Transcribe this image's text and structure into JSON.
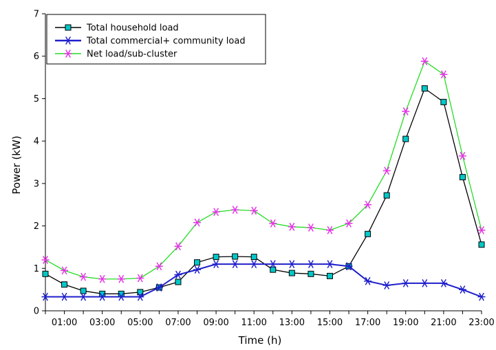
{
  "chart_data": {
    "type": "line",
    "xlabel": "Time (h)",
    "ylabel": "Power (kW)",
    "ylim": [
      0,
      7
    ],
    "yticks": [
      "0",
      "1",
      "2",
      "3",
      "4",
      "5",
      "6",
      "7"
    ],
    "xlim": [
      0,
      23
    ],
    "x_tick_labels": [
      "01:00",
      "03:00",
      "05:00",
      "07:00",
      "09:00",
      "11:00",
      "13:00",
      "15:00",
      "17:00",
      "19:00",
      "21:00",
      "23:00"
    ],
    "x": [
      0,
      1,
      2,
      3,
      4,
      5,
      6,
      7,
      8,
      9,
      10,
      11,
      12,
      13,
      14,
      15,
      16,
      17,
      18,
      19,
      20,
      21,
      22,
      23
    ],
    "legend_position": "top-left",
    "grid": false,
    "series": [
      {
        "name": "Total household load",
        "color": "#000000",
        "marker": "square",
        "marker_color": "#00c8c8",
        "values": [
          0.87,
          0.62,
          0.47,
          0.4,
          0.4,
          0.44,
          0.55,
          0.68,
          1.14,
          1.27,
          1.28,
          1.27,
          0.97,
          0.89,
          0.87,
          0.82,
          1.05,
          1.81,
          2.72,
          4.05,
          5.24,
          4.92,
          3.15,
          1.56
        ]
      },
      {
        "name": "Total commercial+ community load",
        "color": "#1f1fcc",
        "marker": "asterisk",
        "marker_color": "#1f1fcc",
        "values": [
          0.33,
          0.33,
          0.33,
          0.33,
          0.33,
          0.33,
          0.55,
          0.85,
          0.97,
          1.1,
          1.1,
          1.1,
          1.1,
          1.1,
          1.1,
          1.1,
          1.05,
          0.7,
          0.6,
          0.65,
          0.65,
          0.65,
          0.5,
          0.33
        ]
      },
      {
        "name": "Net load/sub-cluster",
        "color": "#22dd22",
        "marker": "asterisk",
        "marker_color": "#e633e6",
        "values": [
          1.2,
          0.95,
          0.8,
          0.75,
          0.75,
          0.77,
          1.05,
          1.52,
          2.08,
          2.33,
          2.38,
          2.36,
          2.06,
          1.98,
          1.96,
          1.9,
          2.06,
          2.5,
          3.3,
          4.7,
          5.88,
          5.57,
          3.65,
          1.9
        ]
      }
    ]
  }
}
